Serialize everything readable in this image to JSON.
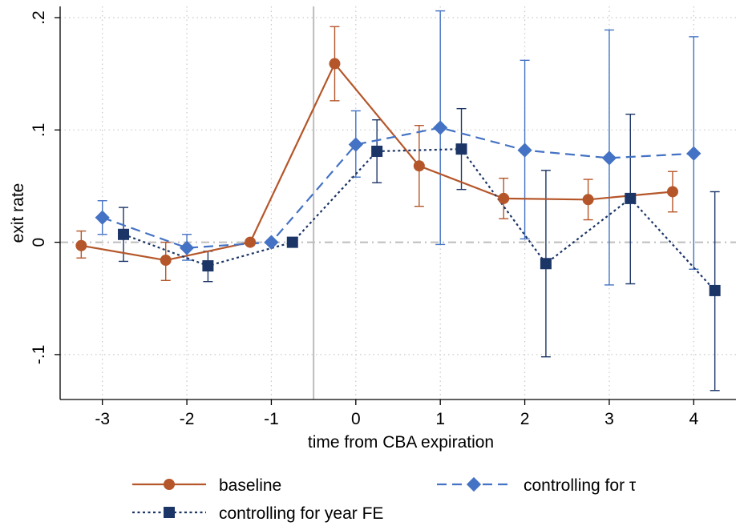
{
  "chart_data": {
    "type": "line",
    "title": "",
    "xlabel": "time from CBA expiration",
    "ylabel": "exit rate",
    "xlim": [
      -3.5,
      4.5
    ],
    "ylim": [
      -0.14,
      0.21
    ],
    "xticks": [
      -3,
      -2,
      -1,
      0,
      1,
      2,
      3,
      4
    ],
    "xtick_labels": [
      "-3",
      "-2",
      "-1",
      "0",
      "1",
      "2",
      "3",
      "4"
    ],
    "yticks": [
      -0.1,
      0,
      0.1,
      0.2
    ],
    "ytick_labels": [
      "-.1",
      "0",
      ".1",
      ".2"
    ],
    "grid": true,
    "reference_lines": {
      "vertical_x": -0.5,
      "horizontal_y": 0
    },
    "legend_position": "bottom",
    "series": [
      {
        "name": "baseline",
        "color": "#b5562a",
        "line_style": "solid",
        "marker": "circle",
        "x": [
          -3.25,
          -2.25,
          -1.25,
          -0.25,
          0.75,
          1.75,
          2.75,
          3.75
        ],
        "y": [
          -0.003,
          -0.016,
          0.0,
          0.159,
          0.068,
          0.039,
          0.038,
          0.045
        ],
        "ci_low": [
          -0.014,
          -0.034,
          null,
          0.126,
          0.032,
          0.021,
          0.02,
          0.027
        ],
        "ci_high": [
          0.01,
          0.0,
          null,
          0.192,
          0.104,
          0.057,
          0.056,
          0.063
        ]
      },
      {
        "name": "controlling for τ",
        "color": "#4472c4",
        "line_style": "dashed",
        "marker": "diamond",
        "x": [
          -3,
          -2,
          -1,
          0,
          1,
          2,
          3,
          4
        ],
        "y": [
          0.022,
          -0.005,
          0.0,
          0.087,
          0.102,
          0.082,
          0.075,
          0.079
        ],
        "ci_low": [
          0.007,
          -0.016,
          null,
          0.058,
          -0.002,
          0.003,
          -0.038,
          -0.024
        ],
        "ci_high": [
          0.037,
          0.007,
          null,
          0.117,
          0.206,
          0.162,
          0.189,
          0.183
        ]
      },
      {
        "name": "controlling for year FE",
        "color": "#1b3566",
        "line_style": "dotted",
        "marker": "square",
        "x": [
          -2.75,
          -1.75,
          -0.75,
          0.25,
          1.25,
          2.25,
          3.25,
          4.25
        ],
        "y": [
          0.007,
          -0.021,
          0.0,
          0.081,
          0.083,
          -0.019,
          0.039,
          -0.043
        ],
        "ci_low": [
          -0.017,
          -0.035,
          null,
          0.053,
          0.047,
          -0.102,
          -0.037,
          -0.132
        ],
        "ci_high": [
          0.031,
          -0.008,
          null,
          0.109,
          0.119,
          0.064,
          0.114,
          0.045
        ]
      }
    ]
  }
}
